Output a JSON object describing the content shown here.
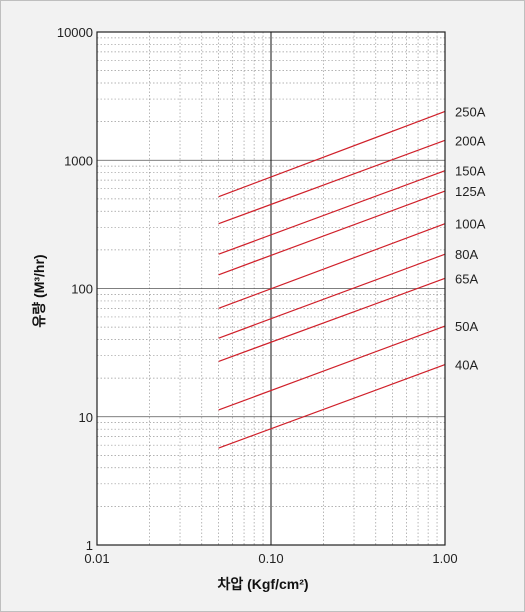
{
  "chart_data": {
    "type": "line",
    "title": "",
    "xlabel": "차압 (Kgf/cm²)",
    "ylabel": "유량 (M³/hr)",
    "x_scale": "log",
    "y_scale": "log",
    "xlim": [
      0.01,
      1.0
    ],
    "ylim": [
      1,
      10000
    ],
    "x_ticks": [
      {
        "value": 0.01,
        "label": "0.01"
      },
      {
        "value": 0.1,
        "label": "0.10"
      },
      {
        "value": 1.0,
        "label": "1.00"
      }
    ],
    "y_ticks": [
      {
        "value": 1,
        "label": "1"
      },
      {
        "value": 10,
        "label": "10"
      },
      {
        "value": 100,
        "label": "100"
      },
      {
        "value": 1000,
        "label": "1000"
      },
      {
        "value": 10000,
        "label": "10000"
      }
    ],
    "grid": true,
    "series": [
      {
        "name": "250A",
        "x": [
          0.05,
          1.0
        ],
        "y": [
          520,
          2400
        ]
      },
      {
        "name": "200A",
        "x": [
          0.05,
          1.0
        ],
        "y": [
          320,
          1430
        ]
      },
      {
        "name": "150A",
        "x": [
          0.05,
          1.0
        ],
        "y": [
          185,
          830
        ]
      },
      {
        "name": "125A",
        "x": [
          0.05,
          1.0
        ],
        "y": [
          128,
          575
        ]
      },
      {
        "name": "100A",
        "x": [
          0.05,
          1.0
        ],
        "y": [
          70,
          320
        ]
      },
      {
        "name": "80A",
        "x": [
          0.05,
          1.0
        ],
        "y": [
          41,
          185
        ]
      },
      {
        "name": "65A",
        "x": [
          0.05,
          1.0
        ],
        "y": [
          27,
          120
        ]
      },
      {
        "name": "50A",
        "x": [
          0.05,
          1.0
        ],
        "y": [
          11.3,
          51
        ]
      },
      {
        "name": "40A",
        "x": [
          0.05,
          1.0
        ],
        "y": [
          5.7,
          25.5
        ]
      }
    ],
    "line_color": "#d0202a"
  }
}
